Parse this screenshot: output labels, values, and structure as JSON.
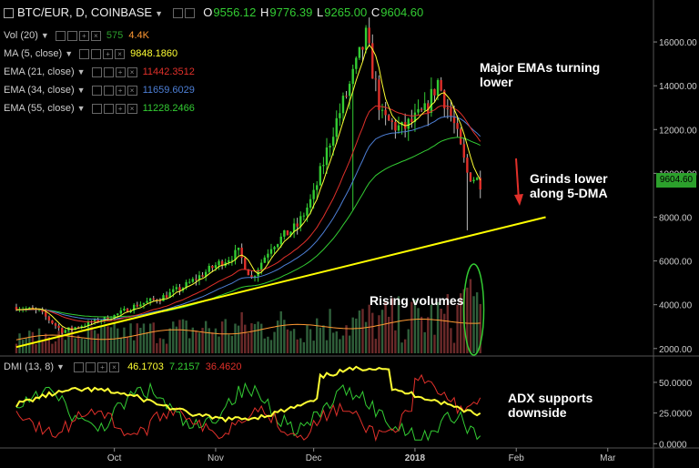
{
  "header": {
    "symbol": "BTC/EUR, D, COINBASE",
    "o_label": "O",
    "o": "9556.12",
    "h_label": "H",
    "h": "9776.39",
    "l_label": "L",
    "l": "9265.00",
    "c_label": "C",
    "c": "9604.60"
  },
  "indicators": [
    {
      "label": "Vol (20)",
      "v1": "575",
      "v1_color": "#2ca02c",
      "v2": "4.4K",
      "v2_color": "#ff9933"
    },
    {
      "label": "MA (5, close)",
      "v1": "9848.1860",
      "v1_color": "#ffff33"
    },
    {
      "label": "EMA (21, close)",
      "v1": "11442.3512",
      "v1_color": "#e0302a"
    },
    {
      "label": "EMA (34, close)",
      "v1": "11659.6029",
      "v1_color": "#4d7fd6"
    },
    {
      "label": "EMA (55, close)",
      "v1": "11228.2466",
      "v1_color": "#33cc33"
    }
  ],
  "dmi": {
    "label": "DMI (13, 8)",
    "adx": "46.1703",
    "plus_di": "7.2157",
    "minus_di": "36.4620"
  },
  "annotations": {
    "emas": "Major EMAs turning lower",
    "grinds": "Grinds lower along 5-DMA",
    "volumes": "Rising volumes",
    "adx": "ADX supports downside"
  },
  "last_price": "9604.60",
  "chart_data": {
    "type": "candlestick",
    "price_axis": {
      "ticks": [
        "16000.00",
        "14000.00",
        "12000.00",
        "10000.00",
        "8000.00",
        "6000.00",
        "4000.00",
        "2000.00"
      ],
      "ylim": [
        1700,
        17500
      ]
    },
    "dmi_axis": {
      "ticks": [
        "50.0000",
        "25.0000",
        "0.0000"
      ],
      "ylim": [
        -2,
        70
      ]
    },
    "x_labels": [
      "Oct",
      "Nov",
      "Dec",
      "2018",
      "Feb",
      "Mar"
    ],
    "price_path": [
      [
        "2017-09-01",
        3900
      ],
      [
        "2017-09-08",
        3700
      ],
      [
        "2017-09-15",
        2800
      ],
      [
        "2017-09-22",
        3100
      ],
      [
        "2017-10-01",
        3500
      ],
      [
        "2017-10-08",
        4000
      ],
      [
        "2017-10-15",
        4300
      ],
      [
        "2017-10-22",
        4800
      ],
      [
        "2017-11-01",
        5800
      ],
      [
        "2017-11-08",
        6400
      ],
      [
        "2017-11-12",
        5200
      ],
      [
        "2017-11-18",
        6700
      ],
      [
        "2017-11-26",
        7600
      ],
      [
        "2017-12-01",
        9000
      ],
      [
        "2017-12-07",
        12000
      ],
      [
        "2017-12-12",
        14000
      ],
      [
        "2017-12-17",
        16200
      ],
      [
        "2017-12-22",
        12500
      ],
      [
        "2017-12-28",
        12000
      ],
      [
        "2018-01-04",
        12800
      ],
      [
        "2018-01-08",
        14200
      ],
      [
        "2018-01-13",
        12200
      ],
      [
        "2018-01-17",
        10000
      ],
      [
        "2018-01-21",
        9600
      ]
    ],
    "trendline": {
      "from": [
        "2017-09-01",
        2400
      ],
      "to": [
        "2018-02-10",
        8000
      ]
    },
    "volume_range": [
      0,
      8000
    ]
  }
}
